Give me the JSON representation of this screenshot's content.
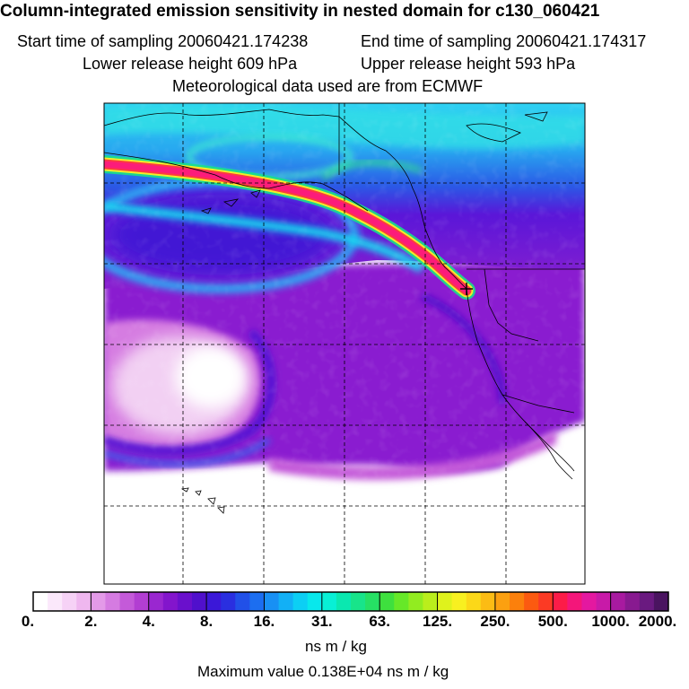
{
  "header": {
    "title": "Column-integrated emission sensitivity in nested domain for c130_060421",
    "start_time": "Start time of sampling 20060421.174238",
    "end_time": "End time of sampling 20060421.174317",
    "lower_release": "Lower release height  609 hPa",
    "upper_release": "Upper release height  593 hPa",
    "met_data": "Meteorological data used are from ECMWF"
  },
  "colorbar": {
    "labels": [
      "0.",
      "2.",
      "4.",
      "8.",
      "16.",
      "31.",
      "63.",
      "125.",
      "250.",
      "500.",
      "1000.",
      "2000."
    ],
    "colors": [
      "#ffffff",
      "#fbe8fb",
      "#f6d2f6",
      "#efb7ef",
      "#e39ae8",
      "#d57be1",
      "#c45ad9",
      "#b23ed2",
      "#9a27d0",
      "#8315cc",
      "#6a10cc",
      "#5010cc",
      "#3b18d8",
      "#2a2fe0",
      "#2150e8",
      "#1c6ef0",
      "#1890f4",
      "#12b0f6",
      "#0ccff4",
      "#08e8ec",
      "#08f0d6",
      "#0ae8b0",
      "#18e48a",
      "#26e064",
      "#3ee03e",
      "#66e828",
      "#92ec20",
      "#baee1c",
      "#dff21c",
      "#f8f020",
      "#fcd818",
      "#fcbc14",
      "#fca010",
      "#fc800c",
      "#fc5a10",
      "#fc3a24",
      "#fc1c48",
      "#f4167a",
      "#e418a0",
      "#c81aa8",
      "#a81aa0",
      "#881a90",
      "#6a1a80",
      "#4a1460"
    ],
    "units": "ns m / kg",
    "max_value": "Maximum value  0.138E+04 ns m / kg"
  },
  "map": {
    "receptor_marker": "+",
    "background_palette": {
      "ocean_north": "#38c6f2",
      "mid_blue": "#2b58e6",
      "deep_purple": "#6a10cc",
      "violet": "#9a27d0",
      "magenta_light": "#d57be1",
      "plume_core": "#fc1c7a",
      "plume_edge": "#f8ec30"
    }
  }
}
